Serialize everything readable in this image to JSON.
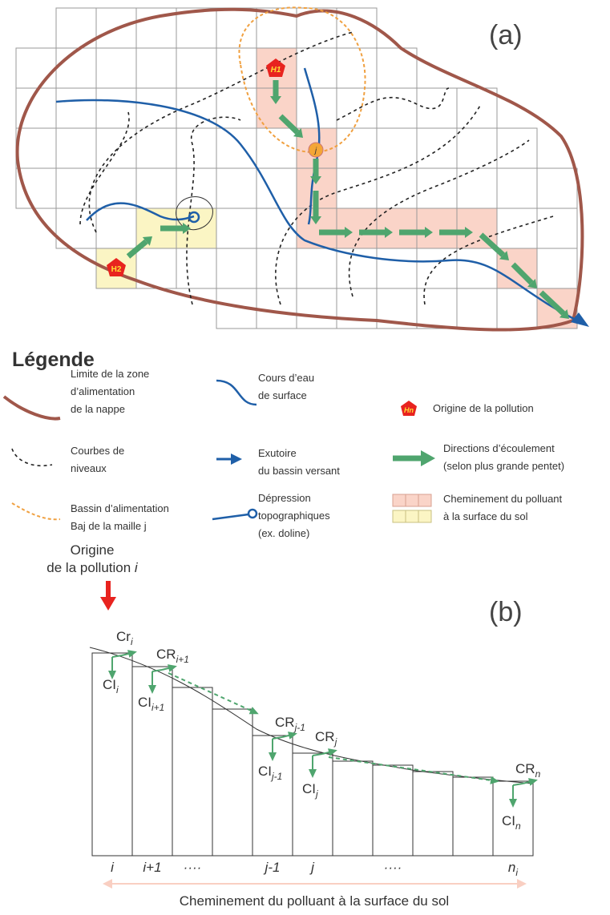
{
  "panel_a": {
    "label": "(a)",
    "h1": "H1",
    "h2": "H2",
    "j": "j"
  },
  "legend": {
    "title": "Légende",
    "limit": [
      "Limite de la zone",
      "d’alimentation",
      "de la nappe"
    ],
    "stream": [
      "Cours d’eau",
      "de surface"
    ],
    "origin_icon": "Hn",
    "origin": "Origine de la pollution",
    "contours": [
      "Courbes de",
      "niveaux"
    ],
    "outlet": [
      "Exutoire",
      "du bassin versant"
    ],
    "flow": [
      "Directions d’écoulement",
      "(selon plus grande pentet)"
    ],
    "basin": [
      "Bassin d’alimentation",
      "Baj de la maille j"
    ],
    "depression": [
      "Dépression",
      "topographiques",
      "(ex. doline)"
    ],
    "path": [
      "Cheminement du polluant",
      "à la surface du sol"
    ]
  },
  "panel_b": {
    "label": "(b)",
    "origin": [
      "Origine",
      "de la pollution ",
      "i"
    ],
    "flows": [
      {
        "base": "Cr",
        "sub": "i"
      },
      {
        "base": "CI",
        "sub": "i"
      },
      {
        "base": "CR",
        "sub": "i+1"
      },
      {
        "base": "CI",
        "sub": "i+1"
      },
      {
        "base": "CR",
        "sub": "j-1"
      },
      {
        "base": "CI",
        "sub": "j-1"
      },
      {
        "base": "CR",
        "sub": "j"
      },
      {
        "base": "CI",
        "sub": "j"
      },
      {
        "base": "CR",
        "sub": "n"
      },
      {
        "base": "CI",
        "sub": "n"
      }
    ],
    "x_labels": [
      "i",
      "i+1",
      "····",
      "j-1",
      "j",
      "····"
    ],
    "x_last": {
      "base": "n",
      "sub": "i"
    },
    "caption": "Cheminement du polluant à la surface du sol"
  }
}
